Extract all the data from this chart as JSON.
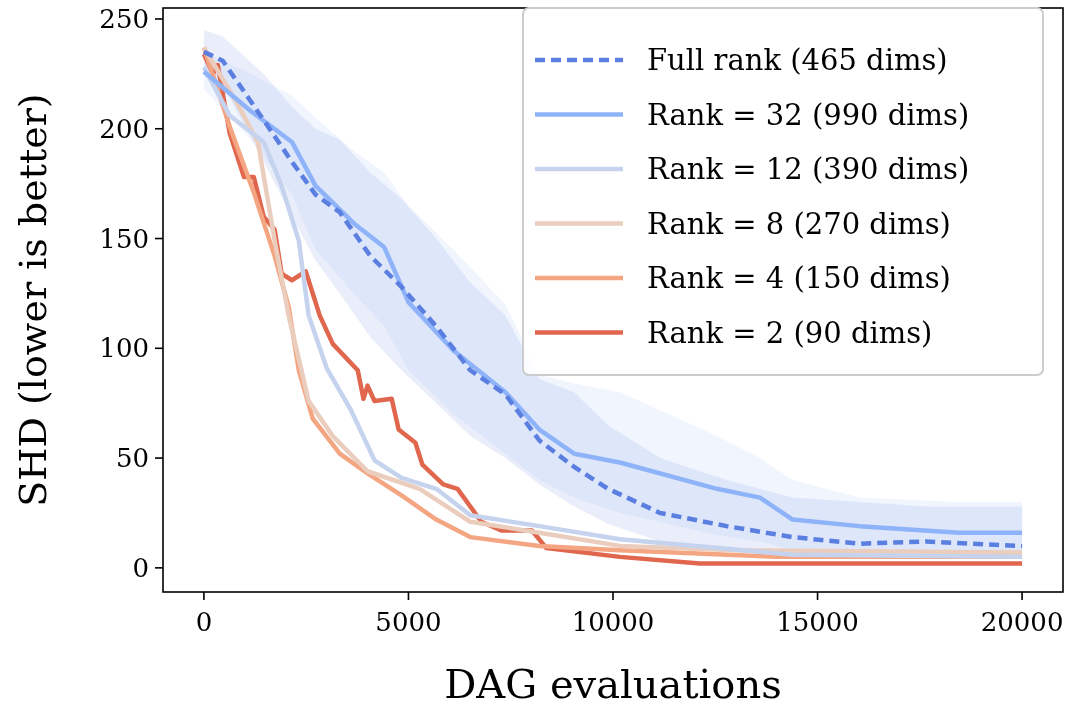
{
  "chart_data": {
    "type": "line",
    "xlabel": "DAG evaluations",
    "ylabel": "SHD (lower is better)",
    "xlim": [
      -1000,
      21000
    ],
    "xticks": [
      0,
      5000,
      10000,
      15000,
      20000
    ],
    "ylim": [
      -11,
      255
    ],
    "yticks": [
      0,
      50,
      100,
      150,
      200,
      250
    ],
    "legend": "top right",
    "marker": "none",
    "series": [
      {
        "name": "Full rank (465 dims)",
        "color": "#5b7fe0",
        "line_style": "dashed",
        "x": [
          0,
          460,
          1460,
          2150,
          2730,
          3320,
          4070,
          4830,
          5680,
          6510,
          7370,
          8200,
          9050,
          9880,
          11150,
          12780,
          14390,
          16020,
          17660,
          19850,
          20000
        ],
        "values": [
          235,
          231,
          204,
          185,
          170,
          162,
          142,
          128,
          110,
          90,
          79,
          58,
          46,
          36,
          25,
          19,
          14,
          11,
          12,
          10,
          10
        ],
        "lower": [
          225,
          220,
          185,
          160,
          140,
          125,
          105,
          90,
          75,
          60,
          50,
          38,
          28,
          20,
          12,
          8,
          6,
          5,
          5,
          5,
          5
        ],
        "upper": [
          245,
          242,
          225,
          210,
          200,
          195,
          180,
          168,
          150,
          130,
          115,
          86,
          80,
          65,
          50,
          40,
          32,
          30,
          28,
          28,
          28
        ]
      },
      {
        "name": "Rank = 32 (990 dims)",
        "color": "#8fb3f8",
        "line_style": "solid",
        "x": [
          0,
          1150,
          2150,
          2730,
          3660,
          4410,
          5000,
          6100,
          7370,
          8200,
          9050,
          10170,
          12540,
          13590,
          14390,
          16020,
          18460,
          20000
        ],
        "values": [
          226,
          208,
          194,
          174,
          157,
          146,
          121,
          99,
          80,
          63,
          52,
          48,
          36,
          32,
          22,
          19,
          16,
          16
        ],
        "lower": [
          218,
          195,
          170,
          145,
          125,
          110,
          90,
          70,
          52,
          40,
          32,
          25,
          15,
          12,
          8,
          7,
          6,
          6
        ],
        "upper": [
          235,
          225,
          215,
          205,
          190,
          180,
          165,
          145,
          120,
          88,
          84,
          80,
          60,
          50,
          40,
          32,
          30,
          30
        ]
      },
      {
        "name": "Rank = 12 (390 dims)",
        "color": "#c5d3ee",
        "line_style": "solid",
        "x": [
          0,
          630,
          1460,
          1900,
          2320,
          2560,
          3000,
          3590,
          4170,
          4830,
          5680,
          6510,
          8200,
          10170,
          14390,
          20000
        ],
        "values": [
          228,
          206,
          194,
          174,
          149,
          115,
          91,
          72,
          49,
          41,
          36,
          24,
          19,
          13,
          6,
          5
        ]
      },
      {
        "name": "Rank = 8 (270 dims)",
        "color": "#ebcdbd",
        "line_style": "solid",
        "x": [
          0,
          800,
          1320,
          1730,
          2070,
          2560,
          3150,
          4000,
          5270,
          6510,
          8200,
          10170,
          13000,
          20000
        ],
        "values": [
          237,
          212,
          194,
          149,
          115,
          76,
          60,
          44,
          36,
          21,
          16,
          10,
          8,
          7
        ]
      },
      {
        "name": "Rank = 4 (150 dims)",
        "color": "#f4a582",
        "line_style": "solid",
        "x": [
          0,
          630,
          1220,
          1730,
          2070,
          2320,
          2660,
          3320,
          4000,
          4830,
          5680,
          6510,
          8200,
          10170,
          14000,
          20000
        ],
        "values": [
          237,
          201,
          171,
          142,
          119,
          90,
          68,
          52,
          43,
          33,
          22,
          14,
          10,
          8,
          5,
          5
        ]
      },
      {
        "name": "Rank = 2 (90 dims)",
        "color": "#e0674e",
        "line_style": "solid",
        "x": [
          0,
          220,
          340,
          630,
          980,
          1220,
          1460,
          1730,
          1900,
          2150,
          2490,
          2830,
          3150,
          3760,
          3900,
          4000,
          4170,
          4590,
          4760,
          5170,
          5340,
          5850,
          6200,
          6780,
          7270,
          8020,
          8370,
          10170,
          12120,
          20000
        ],
        "values": [
          234,
          225,
          229,
          198,
          178,
          178,
          160,
          154,
          134,
          131,
          135,
          115,
          102,
          90,
          77,
          83,
          76,
          77,
          63,
          57,
          47,
          38,
          36,
          21,
          17,
          17,
          9,
          5,
          2,
          2
        ]
      }
    ]
  }
}
